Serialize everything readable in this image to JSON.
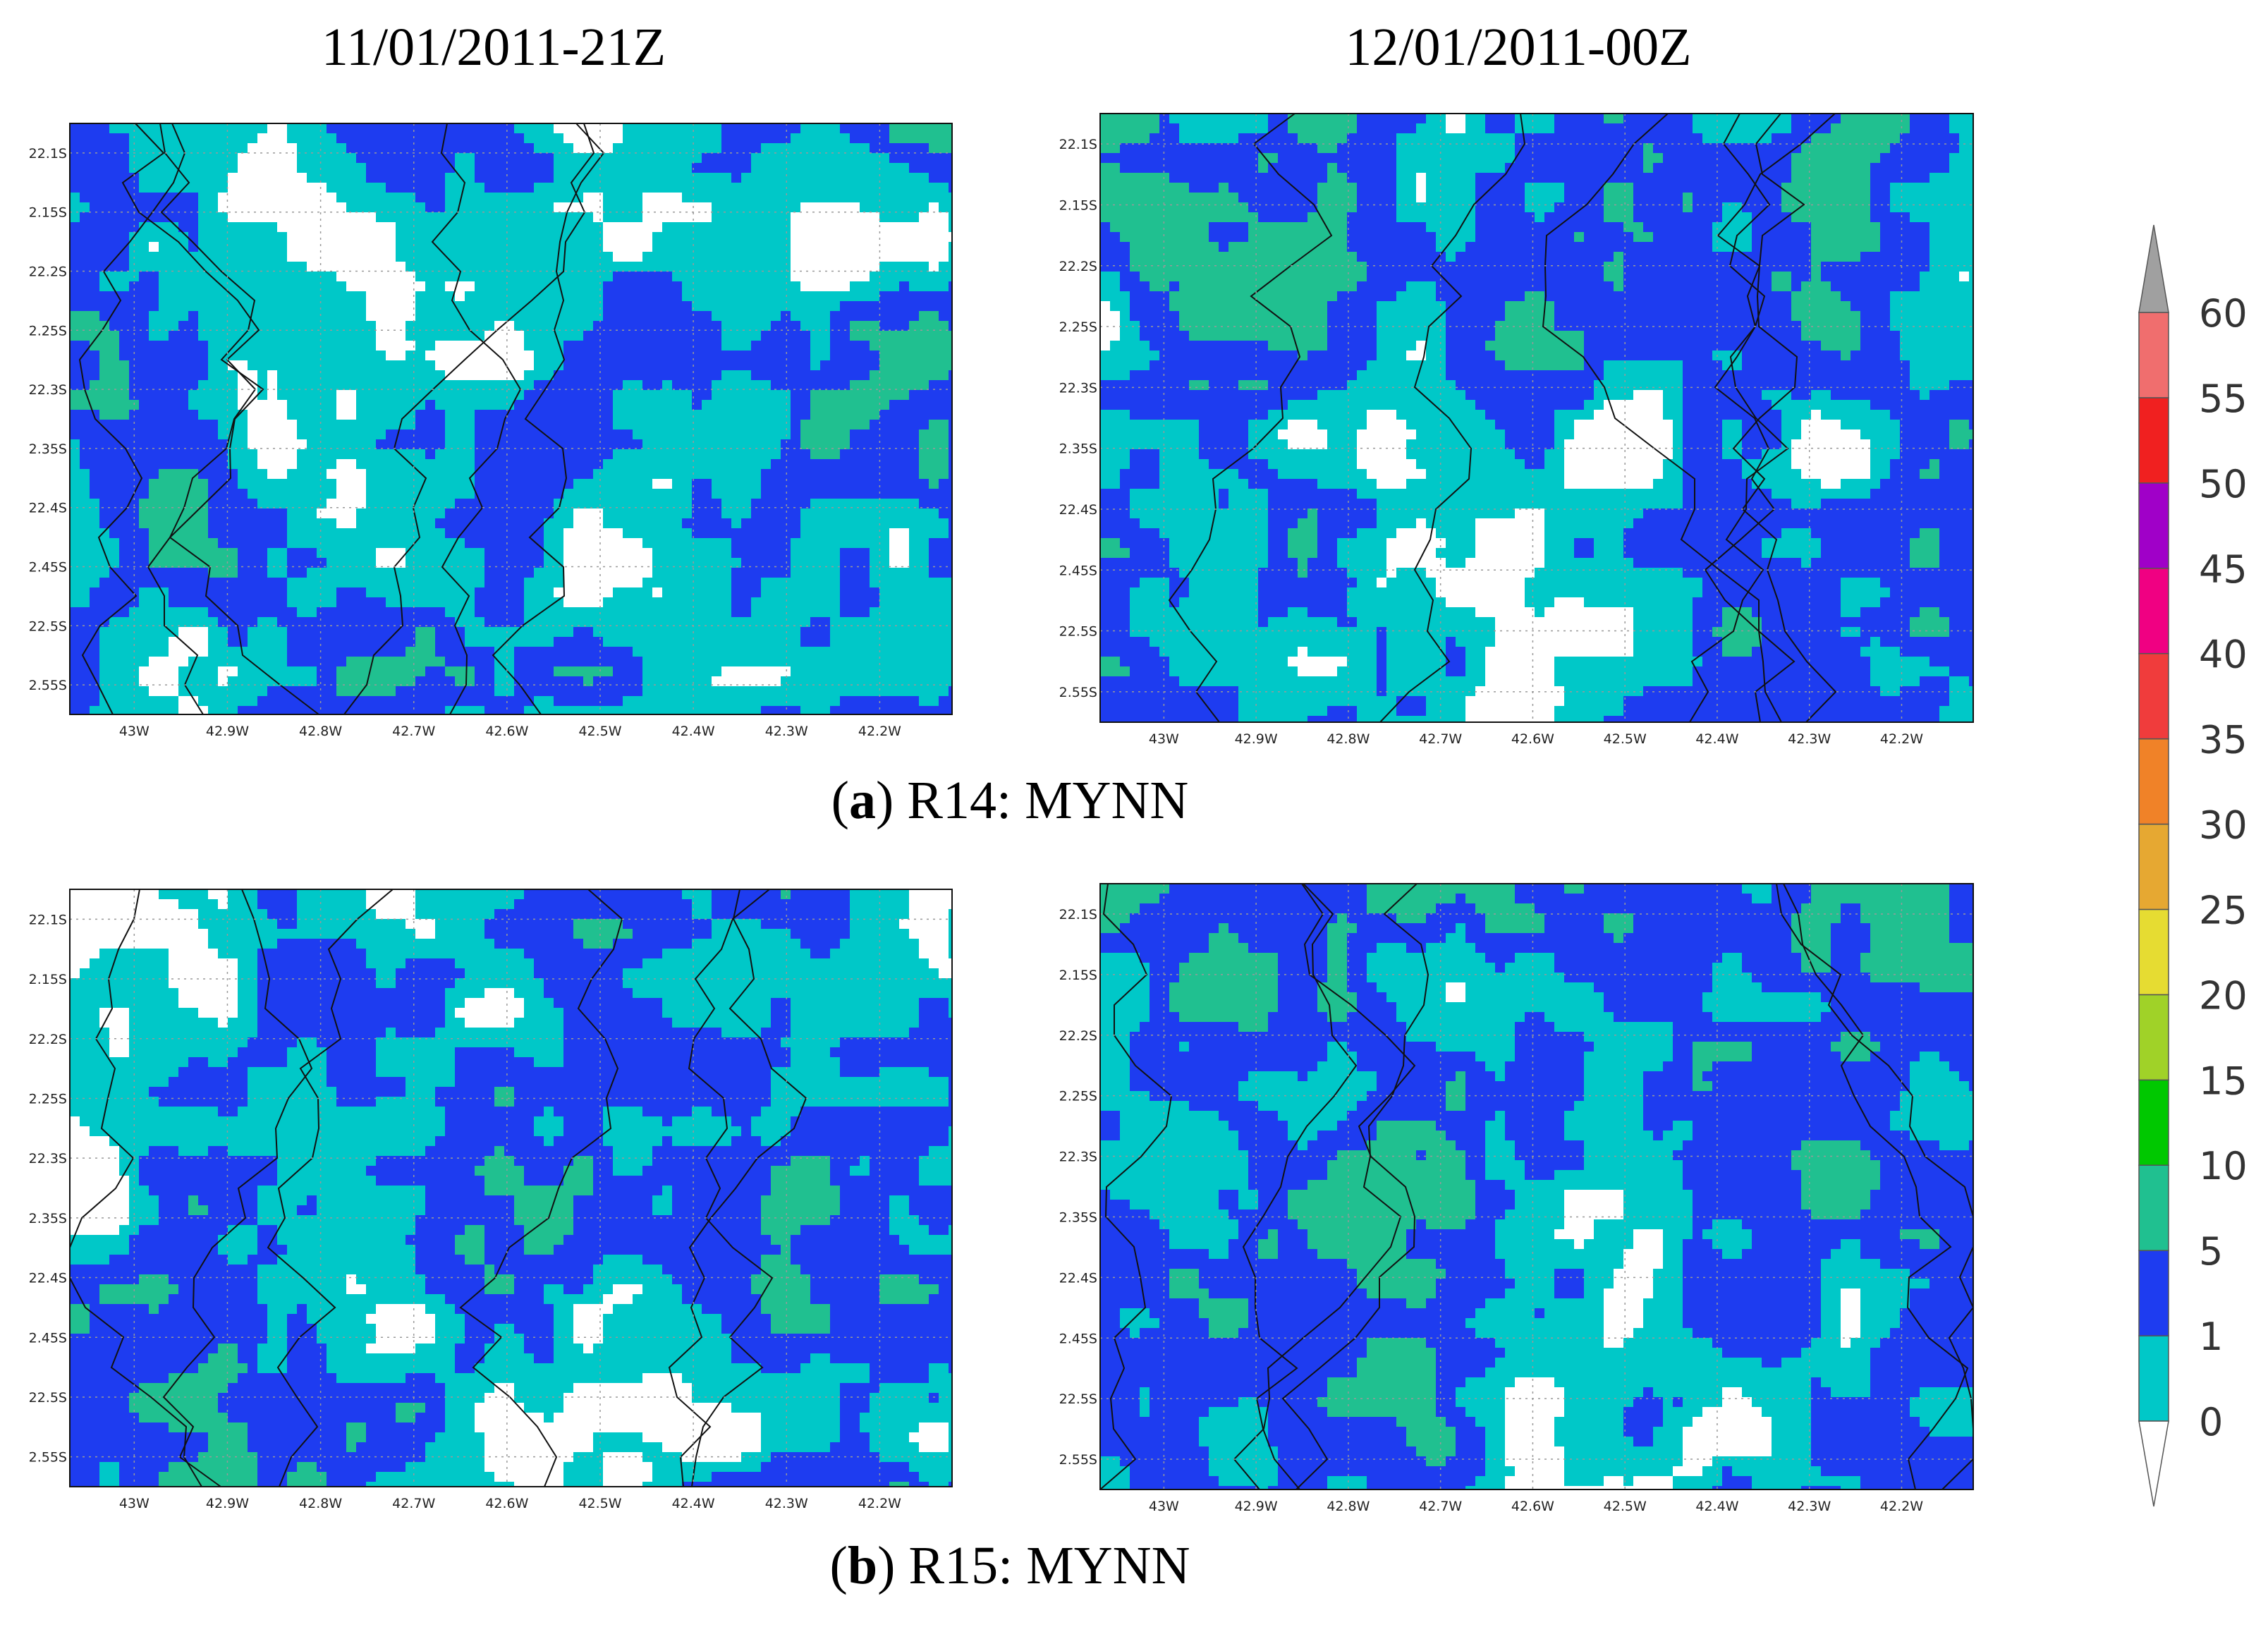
{
  "columns": [
    "11/01/2011-21Z",
    "12/01/2011-00Z"
  ],
  "panels": [
    {
      "caption_parts": [
        "(",
        "a",
        ") R14: MYNN"
      ]
    },
    {
      "caption_parts": [
        "(",
        "b",
        ") R15: MYNN"
      ]
    }
  ],
  "lat_labels": [
    "22.1S",
    "2.15S",
    "22.2S",
    "2.25S",
    "22.3S",
    "2.35S",
    "22.4S",
    "2.45S",
    "22.5S",
    "2.55S"
  ],
  "lon_labels": [
    "43W",
    "42.9W",
    "42.8W",
    "42.7W",
    "42.6W",
    "42.5W",
    "42.4W",
    "42.3W",
    "42.2W"
  ],
  "colorbar": {
    "levels": [
      0,
      1,
      5,
      10,
      15,
      20,
      25,
      30,
      35,
      40,
      45,
      50,
      55,
      60
    ],
    "colors": [
      "#00c8c8",
      "#1e3cf0",
      "#20c090",
      "#00c800",
      "#a0d228",
      "#e6dc32",
      "#e6a832",
      "#f08228",
      "#f03c3c",
      "#f00082",
      "#a000c8",
      "#f02020",
      "#f06e6e"
    ],
    "under_color": "#ffffff",
    "over_color": "#a0a0a0"
  }
}
